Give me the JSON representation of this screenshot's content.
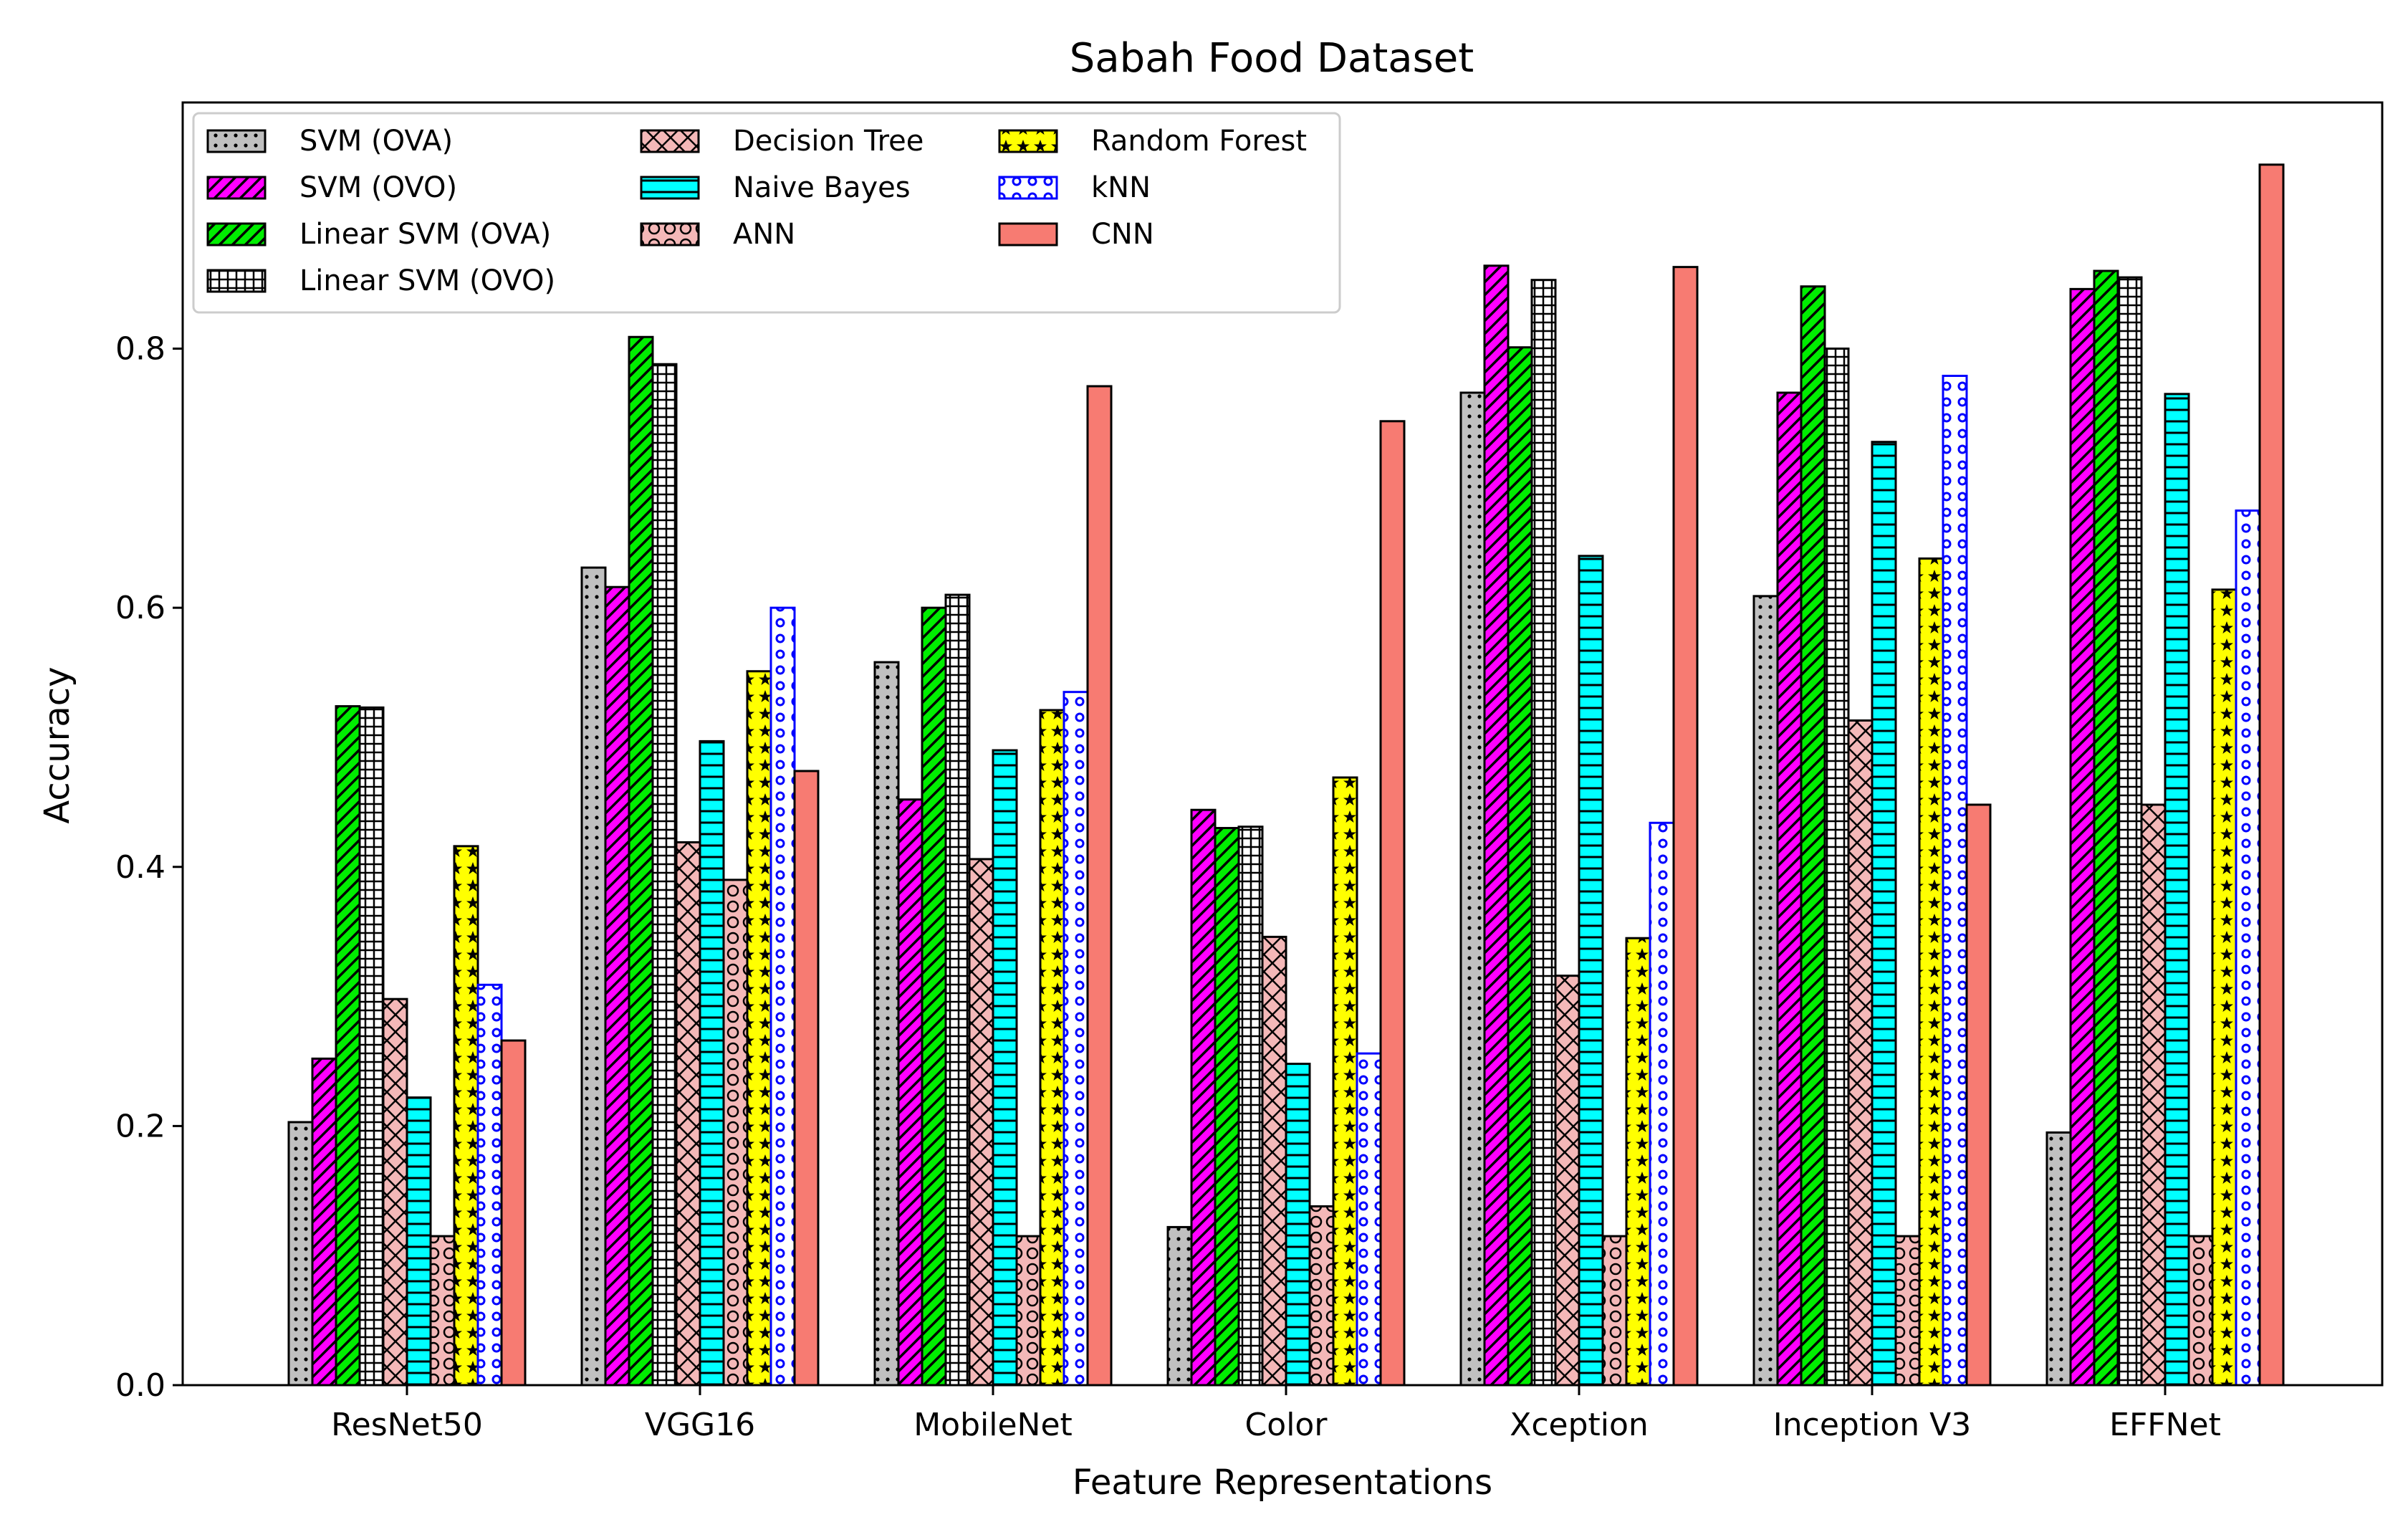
{
  "chart_data": {
    "type": "bar",
    "title": "Sabah Food Dataset",
    "xlabel": "Feature Representations",
    "ylabel": "Accuracy",
    "ylim": [
      0,
      0.99
    ],
    "yticks": [
      "0.0",
      "0.2",
      "0.4",
      "0.6",
      "0.8"
    ],
    "grid": false,
    "legend_position": "top-left",
    "categories": [
      "ResNet50",
      "VGG16",
      "MobileNet",
      "Color",
      "Xception",
      "Inception V3",
      "EFFNet"
    ],
    "series": [
      {
        "name": "SVM (OVA)",
        "color": "#c0c0c0",
        "pattern": "dots",
        "values": [
          0.203,
          0.631,
          0.558,
          0.122,
          0.766,
          0.609,
          0.195
        ]
      },
      {
        "name": "SVM (OVO)",
        "color": "#ff00ff",
        "pattern": "diag-back",
        "values": [
          0.252,
          0.616,
          0.452,
          0.444,
          0.864,
          0.766,
          0.846
        ]
      },
      {
        "name": "Linear SVM (OVA)",
        "color": "#00ff00",
        "pattern": "diag-fwd",
        "values": [
          0.524,
          0.809,
          0.6,
          0.43,
          0.801,
          0.848,
          0.86
        ]
      },
      {
        "name": "Linear SVM (OVO)",
        "color": "#ffffff",
        "pattern": "grid",
        "values": [
          0.523,
          0.788,
          0.61,
          0.431,
          0.853,
          0.8,
          0.855
        ]
      },
      {
        "name": "Decision Tree",
        "color": "#f4b8b8",
        "pattern": "cross",
        "values": [
          0.298,
          0.419,
          0.406,
          0.346,
          0.316,
          0.513,
          0.448
        ]
      },
      {
        "name": "Naive Bayes",
        "color": "#00ffff",
        "pattern": "hlines",
        "values": [
          0.222,
          0.497,
          0.49,
          0.248,
          0.64,
          0.728,
          0.765
        ]
      },
      {
        "name": "ANN",
        "color": "#f4b8b8",
        "pattern": "circles",
        "values": [
          0.115,
          0.39,
          0.115,
          0.138,
          0.115,
          0.115,
          0.115
        ]
      },
      {
        "name": "Random Forest",
        "color": "#ffff00",
        "pattern": "stars",
        "values": [
          0.416,
          0.551,
          0.521,
          0.469,
          0.345,
          0.638,
          0.614
        ]
      },
      {
        "name": "kNN",
        "color": "#ffffff",
        "pattern": "blue-circles",
        "values": [
          0.309,
          0.6,
          0.535,
          0.256,
          0.434,
          0.779,
          0.675
        ]
      },
      {
        "name": "CNN",
        "color": "#f77b72",
        "pattern": "none",
        "values": [
          0.266,
          0.474,
          0.771,
          0.744,
          0.863,
          0.448,
          0.942
        ]
      }
    ]
  }
}
